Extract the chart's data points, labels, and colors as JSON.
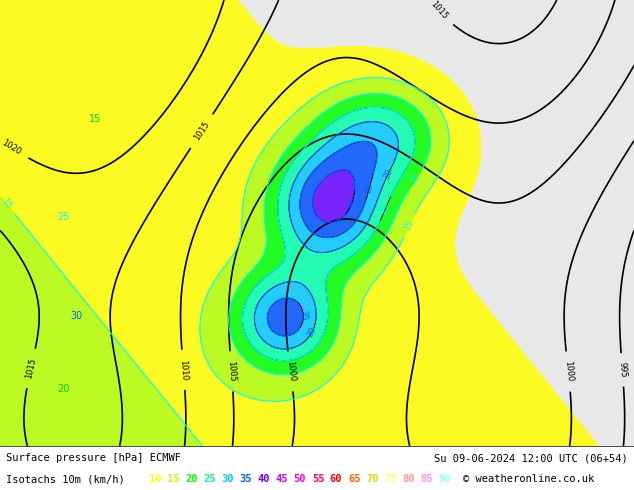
{
  "title_line1": "Surface pressure [hPa] ECMWF",
  "title_line1_right": "Su 09-06-2024 12:00 UTC (06+54)",
  "title_line2_label": "Isotachs 10m (km/h)",
  "copyright": "© weatheronline.co.uk",
  "isotach_values": [
    10,
    15,
    20,
    25,
    30,
    35,
    40,
    45,
    50,
    55,
    60,
    65,
    70,
    75,
    80,
    85,
    90
  ],
  "isotach_colors": [
    "#ffff00",
    "#c8ff00",
    "#00ff00",
    "#00ff96",
    "#00c8ff",
    "#0064ff",
    "#6400ff",
    "#c800ff",
    "#ff00c8",
    "#ff0064",
    "#ff0000",
    "#ff6400",
    "#ffc800",
    "#ffff64",
    "#ff9696",
    "#ff96ff",
    "#96ffff"
  ],
  "bg_color": "#e8e8e8",
  "map_bg": "#e8e8e8",
  "land_color": "#d0d0d0",
  "text_color": "#000000",
  "bottom_bar_color": "#ffffff",
  "fig_width": 6.34,
  "fig_height": 4.9,
  "dpi": 100,
  "legend_colors_exact": [
    "#ffff00",
    "#b4ff00",
    "#00ff00",
    "#00ffaa",
    "#00c8ff",
    "#0050ff",
    "#6400ff",
    "#c800ff",
    "#ff00cc",
    "#ff0050",
    "#ff0000",
    "#ff6400",
    "#ffc800",
    "#ffff50",
    "#ff9696",
    "#ff96ff",
    "#96ffff"
  ]
}
